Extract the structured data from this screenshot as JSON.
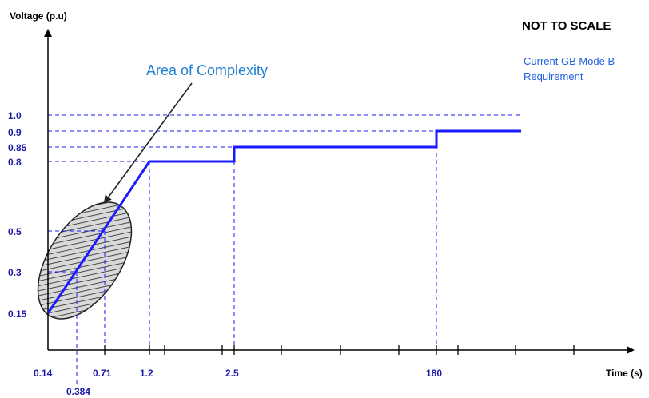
{
  "chart_data": {
    "type": "line",
    "title": "",
    "xlabel": "Time (s)",
    "ylabel": "Voltage (p.u)",
    "x_tick_labels": [
      "0.14",
      "0.384",
      "0.71",
      "1.2",
      "2.5",
      "180"
    ],
    "y_tick_labels": [
      "0.15",
      "0.3",
      "0.5",
      "0.8",
      "0.85",
      "0.9",
      "1.0"
    ],
    "note": "NOT TO SCALE",
    "legend": [
      "Current GB Mode B",
      "Requirement"
    ],
    "annotation": "Area of Complexity",
    "series": [
      {
        "name": "Current GB Mode B Requirement",
        "points": [
          {
            "x": "0.14",
            "y": 0.15
          },
          {
            "x": "1.2",
            "y": 0.8
          },
          {
            "x": "2.5",
            "y": 0.8
          },
          {
            "x": "2.5",
            "y": 0.85
          },
          {
            "x": "180",
            "y": 0.85
          },
          {
            "x": "180",
            "y": 0.9
          },
          {
            "x": "end",
            "y": 0.9
          }
        ]
      }
    ],
    "reference_y": 1.0,
    "grid": false,
    "x_scale": "not to scale",
    "colors": {
      "line": "#1a1aff",
      "guide": "#1a1aff",
      "tick_label": "#1a1aa6",
      "legend": "#1f5fe0",
      "annotation": "#1f7fd0"
    }
  }
}
